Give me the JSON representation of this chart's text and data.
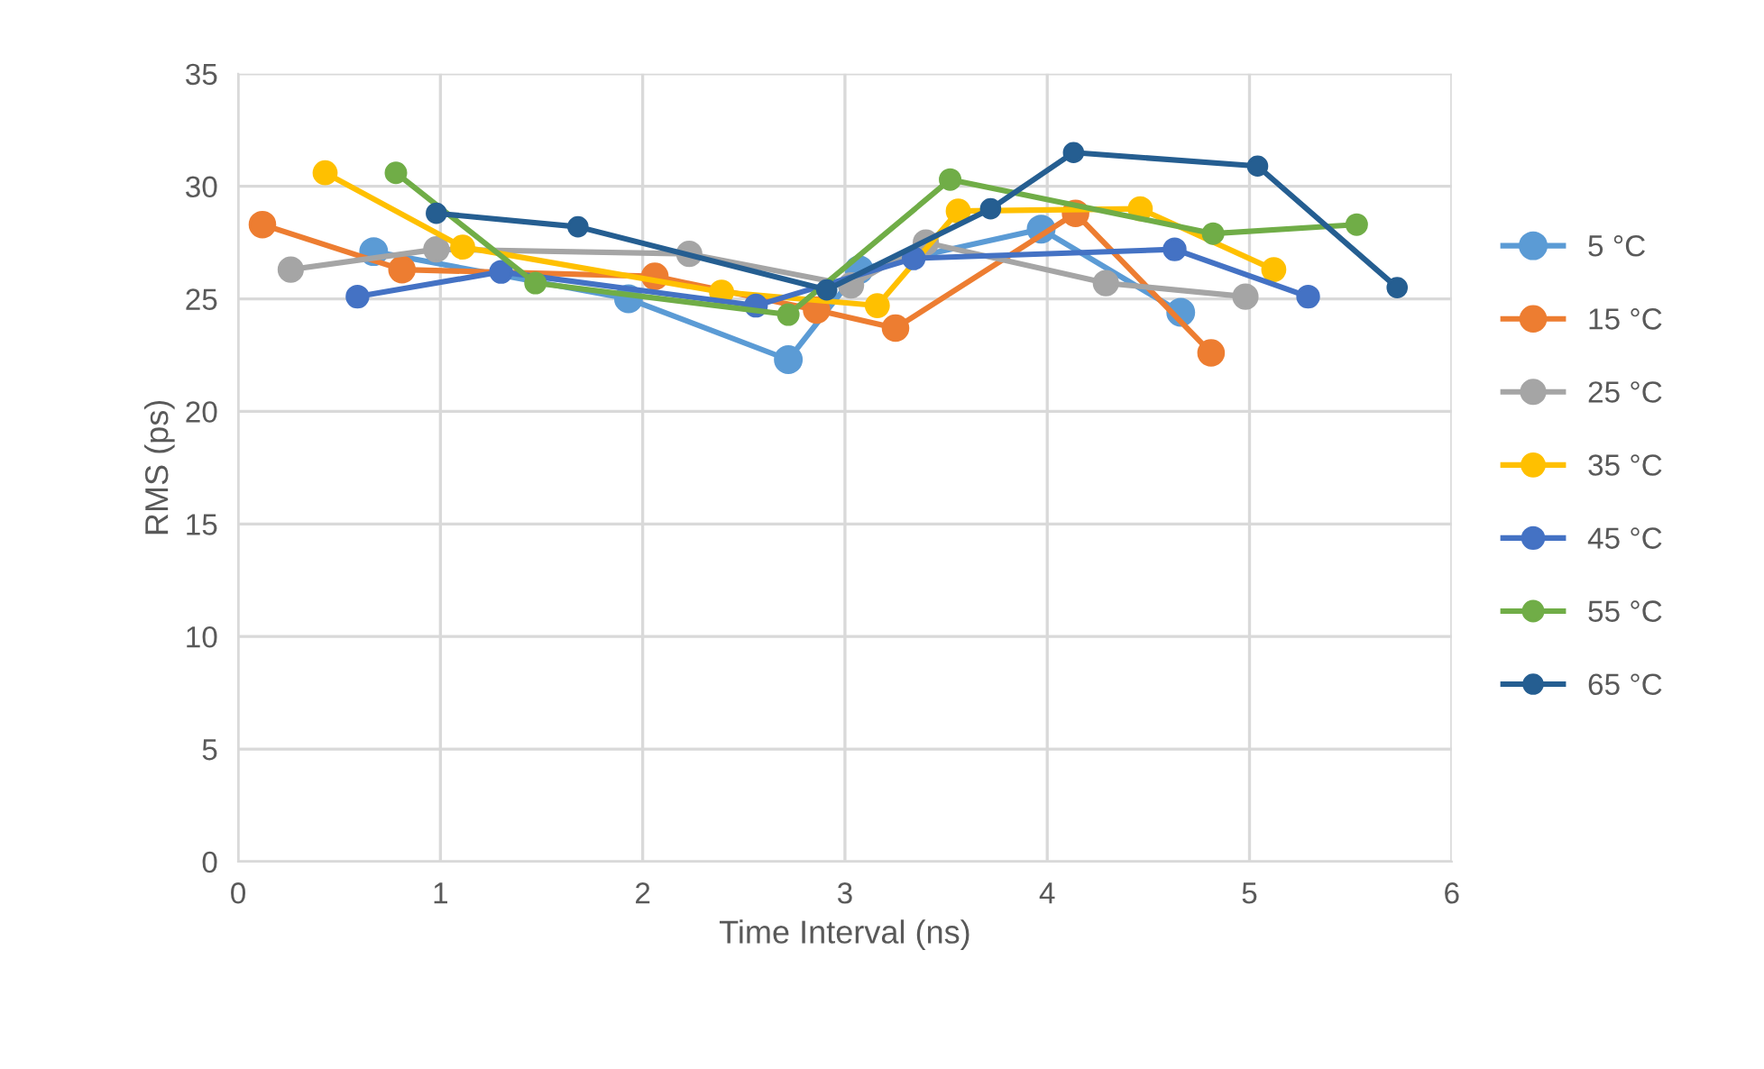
{
  "chart_data": {
    "type": "line",
    "xlabel": "Time Interval (ns)",
    "ylabel": "RMS (ps)",
    "xlim": [
      0,
      6
    ],
    "xticks": [
      0,
      1,
      2,
      3,
      4,
      5,
      6
    ],
    "ylim": [
      0,
      35
    ],
    "yticks": [
      0,
      5,
      10,
      15,
      20,
      25,
      30,
      35
    ],
    "grid": true,
    "legend": "right",
    "marker": "circle",
    "line_style": "solid",
    "series": [
      {
        "name": "5 °C",
        "color": "#5b9bd5",
        "x": [
          0.67,
          1.93,
          2.72,
          3.07,
          3.97,
          4.66
        ],
        "values": [
          27.1,
          25.0,
          22.3,
          26.3,
          28.1,
          24.4
        ]
      },
      {
        "name": "15 °C",
        "color": "#ed7d31",
        "x": [
          0.12,
          0.81,
          2.06,
          2.86,
          3.25,
          4.14,
          4.81
        ],
        "values": [
          28.3,
          26.3,
          26.0,
          24.5,
          23.7,
          28.8,
          22.6
        ]
      },
      {
        "name": "25 °C",
        "color": "#a5a5a5",
        "x": [
          0.26,
          0.98,
          2.23,
          3.03,
          3.4,
          4.29,
          4.98
        ],
        "values": [
          26.3,
          27.2,
          27.0,
          25.6,
          27.5,
          25.7,
          25.1
        ]
      },
      {
        "name": "35 °C",
        "color": "#ffc000",
        "x": [
          0.43,
          1.11,
          2.39,
          3.16,
          3.56,
          4.46,
          5.12
        ],
        "values": [
          30.6,
          27.3,
          25.3,
          24.7,
          28.9,
          29.0,
          26.3
        ]
      },
      {
        "name": "45 °C",
        "color": "#4472c4",
        "x": [
          0.59,
          1.3,
          2.56,
          3.34,
          4.63,
          5.29
        ],
        "values": [
          25.1,
          26.2,
          24.7,
          26.8,
          27.2,
          25.1
        ]
      },
      {
        "name": "55 °C",
        "color": "#70ad47",
        "x": [
          0.78,
          1.47,
          2.72,
          3.52,
          4.82,
          5.53
        ],
        "values": [
          30.6,
          25.7,
          24.3,
          30.3,
          27.9,
          28.3
        ]
      },
      {
        "name": "65 °C",
        "color": "#255e91",
        "x": [
          0.98,
          1.68,
          2.91,
          3.72,
          4.13,
          5.04,
          5.73
        ],
        "values": [
          28.8,
          28.2,
          25.4,
          29.0,
          31.5,
          30.9,
          25.5
        ]
      }
    ]
  }
}
